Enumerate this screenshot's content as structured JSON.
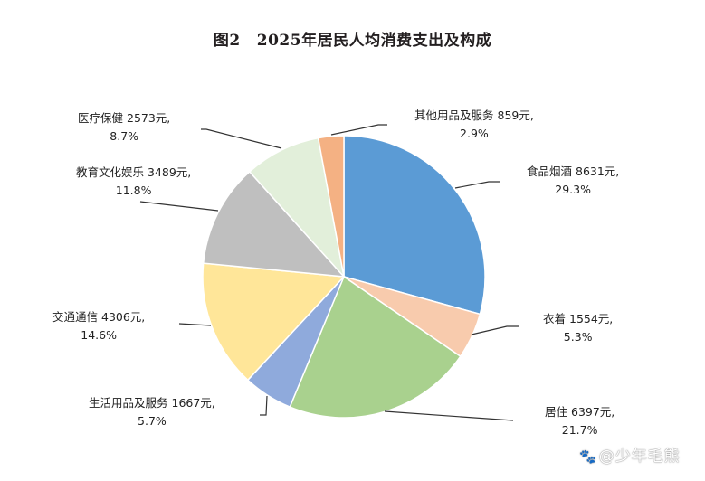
{
  "title": {
    "figure_no": "图2",
    "text": "2025年居民人均消费支出及构成"
  },
  "watermark": {
    "icon": "baidu-paw-icon",
    "text": "@少年毛熊"
  },
  "labels": [
    {
      "name": "食品烟酒",
      "value_text": "8631元,",
      "pct_text": "29.3%"
    },
    {
      "name": "衣着",
      "value_text": "1554元,",
      "pct_text": "5.3%"
    },
    {
      "name": "居住",
      "value_text": "6397元,",
      "pct_text": "21.7%"
    },
    {
      "name": "生活用品及服务",
      "value_text": "1667元,",
      "pct_text": "5.7%"
    },
    {
      "name": "交通通信",
      "value_text": "4306元,",
      "pct_text": "14.6%"
    },
    {
      "name": "教育文化娱乐",
      "value_text": "3489元,",
      "pct_text": "11.8%"
    },
    {
      "name": "医疗保健",
      "value_text": "2573元,",
      "pct_text": "8.7%"
    },
    {
      "name": "其他用品及服务",
      "value_text": "859元,",
      "pct_text": "2.9%"
    }
  ],
  "chart_data": {
    "type": "pie",
    "title": "图2 2025年居民人均消费支出及构成",
    "unit": "元",
    "start_angle": "12 o'clock",
    "direction": "clockwise",
    "categories": [
      "食品烟酒",
      "衣着",
      "居住",
      "生活用品及服务",
      "交通通信",
      "教育文化娱乐",
      "医疗保健",
      "其他用品及服务"
    ],
    "values": [
      8631,
      1554,
      6397,
      1667,
      4306,
      3489,
      2573,
      859
    ],
    "percentages": [
      29.3,
      5.3,
      21.7,
      5.7,
      14.6,
      11.8,
      8.7,
      2.9
    ],
    "colors": [
      "#5b9bd5",
      "#f8cbad",
      "#a9d18e",
      "#8faadc",
      "#ffe699",
      "#bfbfbf",
      "#e2efda",
      "#f4b183"
    ],
    "legend": "none (leader-line data labels)"
  }
}
